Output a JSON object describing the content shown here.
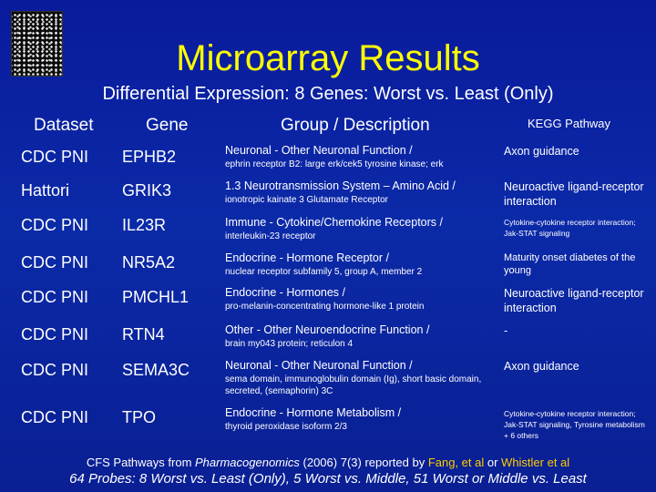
{
  "title": "Microarray Results",
  "subtitle": "Differential Expression:  8 Genes: Worst vs. Least (Only)",
  "headers": {
    "dataset": "Dataset",
    "gene": "Gene",
    "group": "Group / Description",
    "kegg": "KEGG Pathway"
  },
  "rows": [
    {
      "dataset": "CDC PNI",
      "gene": "EPHB2",
      "group": "Neuronal - Other Neuronal Function /",
      "desc": "ephrin receptor B2:  large erk/cek5 tyrosine kinase; erk",
      "kegg": "Axon guidance"
    },
    {
      "dataset": "Hattori",
      "gene": "GRIK3",
      "group": "1.3 Neurotransmission System – Amino Acid /",
      "desc": " ionotropic kainate 3 Glutamate Receptor",
      "kegg": "Neuroactive ligand-receptor interaction"
    },
    {
      "dataset": "CDC PNI",
      "gene": "IL23R",
      "group": "Immune - Cytokine/Chemokine Receptors /",
      "desc": "interleukin-23 receptor",
      "kegg": "Cytokine-cytokine receptor interaction; Jak-STAT signaling"
    },
    {
      "dataset": "CDC PNI",
      "gene": "NR5A2",
      "group": "Endocrine - Hormone Receptor /",
      "desc": "nuclear receptor subfamily 5, group A, member 2",
      "kegg": "Maturity onset diabetes of the young"
    },
    {
      "dataset": "CDC PNI",
      "gene": "PMCHL1",
      "group": "Endocrine - Hormones /",
      "desc": "pro-melanin-concentrating hormone-like 1 protein",
      "kegg": "Neuroactive ligand-receptor interaction"
    },
    {
      "dataset": "CDC PNI",
      "gene": "RTN4",
      "group": "Other - Other Neuroendocrine Function /",
      "desc": "brain my043 protein; reticulon 4",
      "kegg": "-"
    },
    {
      "dataset": "CDC PNI",
      "gene": "SEMA3C",
      "group": "Neuronal - Other Neuronal Function /",
      "desc": "sema domain, immunoglobulin domain (Ig), short basic domain, secreted, (semaphorin) 3C",
      "kegg": "Axon guidance"
    },
    {
      "dataset": "CDC PNI",
      "gene": "TPO",
      "group": "Endocrine - Hormone Metabolism /",
      "desc": "thyroid peroxidase isoform 2/3",
      "kegg": "Cytokine-cytokine  receptor interaction; Jak-STAT signaling, Tyrosine metabolism + 6 others"
    }
  ],
  "footer": {
    "line1_part1": "CFS Pathways from ",
    "line1_journal": "Pharmacogenomics",
    "line1_part2": " (2006) 7(3)  reported by ",
    "line1_author1": "Fang, et al",
    "line1_or": " or ",
    "line1_author2": "Whistler et al",
    "line2": "64 Probes:  8 Worst vs. Least (Only), 5 Worst vs. Middle, 51 Worst or Middle vs. Least"
  },
  "colors": {
    "title": "#ffff00",
    "highlight": "#ffcc00",
    "background": "#0b2aa8"
  }
}
